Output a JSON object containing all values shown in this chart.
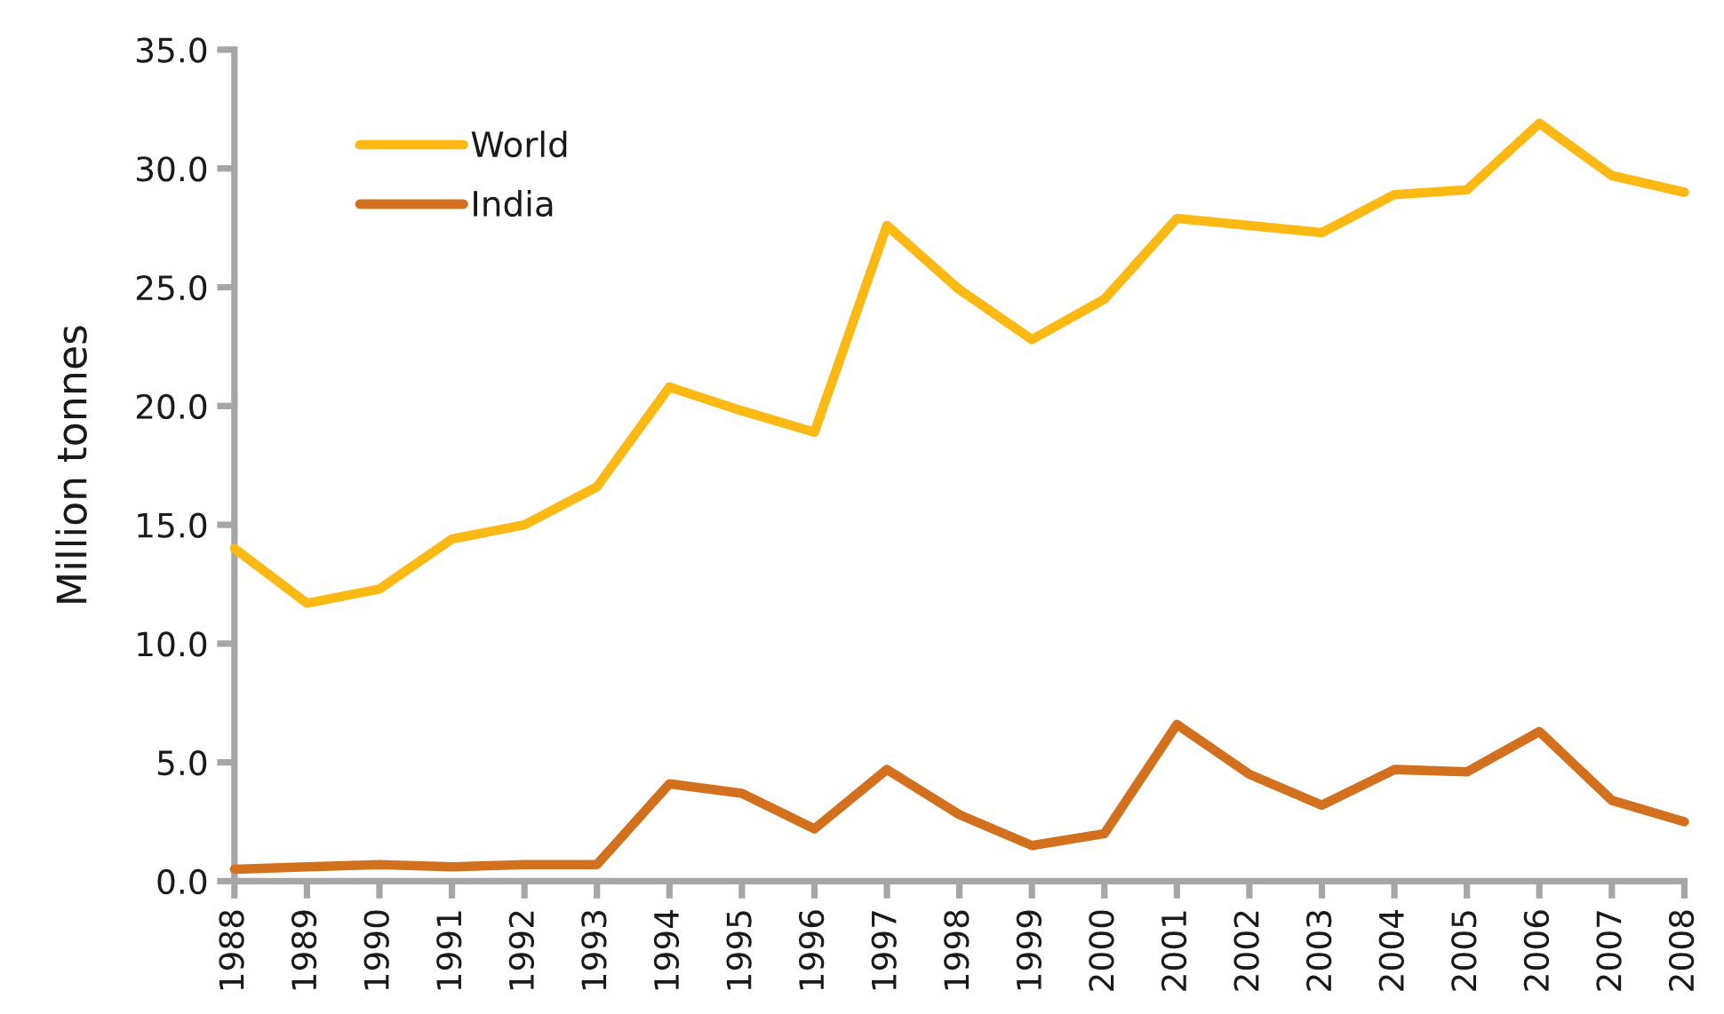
{
  "chart_data": {
    "type": "line",
    "categories": [
      "1988",
      "1989",
      "1990",
      "1991",
      "1992",
      "1993",
      "1994",
      "1995",
      "1996",
      "1997",
      "1998",
      "1999",
      "2000",
      "2001",
      "2002",
      "2003",
      "2004",
      "2005",
      "2006",
      "2007",
      "2008"
    ],
    "series": [
      {
        "name": "World",
        "color": "#fdb913",
        "values": [
          14.0,
          11.7,
          12.3,
          14.4,
          15.0,
          16.6,
          20.8,
          19.8,
          18.9,
          27.6,
          24.9,
          22.8,
          24.5,
          27.9,
          27.6,
          27.3,
          28.9,
          29.1,
          31.9,
          29.7,
          29.0
        ]
      },
      {
        "name": "India",
        "color": "#d2701e",
        "values": [
          0.5,
          0.6,
          0.7,
          0.6,
          0.7,
          0.7,
          4.1,
          3.7,
          2.2,
          4.7,
          2.8,
          1.5,
          2.0,
          6.6,
          4.5,
          3.2,
          4.7,
          4.6,
          6.3,
          3.4,
          2.5
        ]
      }
    ],
    "ylabel": "Million tonnes",
    "ylim": [
      0,
      35
    ],
    "yticks": [
      {
        "value": 0,
        "label": "0.0"
      },
      {
        "value": 5,
        "label": "5.0"
      },
      {
        "value": 10,
        "label": "10.0"
      },
      {
        "value": 15,
        "label": "15.0"
      },
      {
        "value": 20,
        "label": "20.0"
      },
      {
        "value": 25,
        "label": "25.0"
      },
      {
        "value": 30,
        "label": "30.0"
      },
      {
        "value": 35,
        "label": "35.0"
      }
    ],
    "grid": false,
    "legend": "top left",
    "marker": "none",
    "line_style": "solid"
  }
}
